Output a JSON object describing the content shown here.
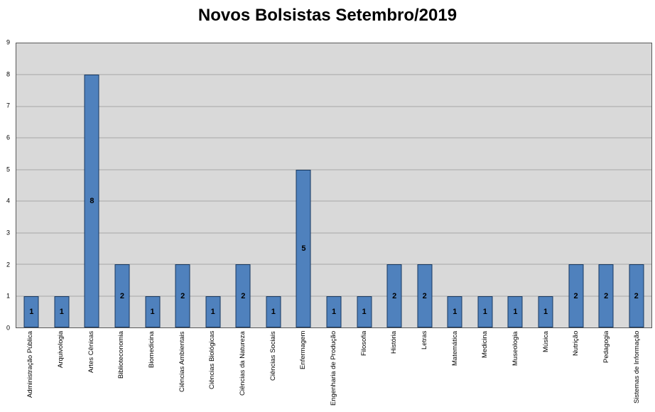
{
  "chart": {
    "title": "Novos Bolsistas Setembro/2019"
  },
  "chart_data": {
    "type": "bar",
    "title": "Novos Bolsistas Setembro/2019",
    "categories": [
      "Administração Pública",
      "Arquivologia",
      "Artes Cênicas",
      "Biblioteconomia",
      "Biomedicina",
      "Ciências Ambientais",
      "Ciências Biológicas",
      "Ciências da Natureza",
      "Ciências Sociais",
      "Enfermagem",
      "Engenharia de Produção",
      "Filosofia",
      "História",
      "Letras",
      "Matemática",
      "Medicina",
      "Museologia",
      "Música",
      "Nutrição",
      "Pedagogia",
      "Sistemas de Informação"
    ],
    "values": [
      1,
      1,
      8,
      2,
      1,
      2,
      1,
      2,
      1,
      5,
      1,
      1,
      2,
      2,
      1,
      1,
      1,
      1,
      2,
      2,
      2
    ],
    "xlabel": "",
    "ylabel": "",
    "ylim": [
      0,
      9
    ],
    "yticks": [
      0,
      1,
      2,
      3,
      4,
      5,
      6,
      7,
      8,
      9
    ],
    "grid": true,
    "legend": false,
    "data_labels": true,
    "colors": {
      "bar_fill": "#4f81bd",
      "bar_border": "#17375e",
      "plot_background": "#d9d9d9",
      "gridline": "#a6a6a6",
      "axis": "#595959",
      "background": "#ffffff",
      "title": "#000000"
    }
  }
}
